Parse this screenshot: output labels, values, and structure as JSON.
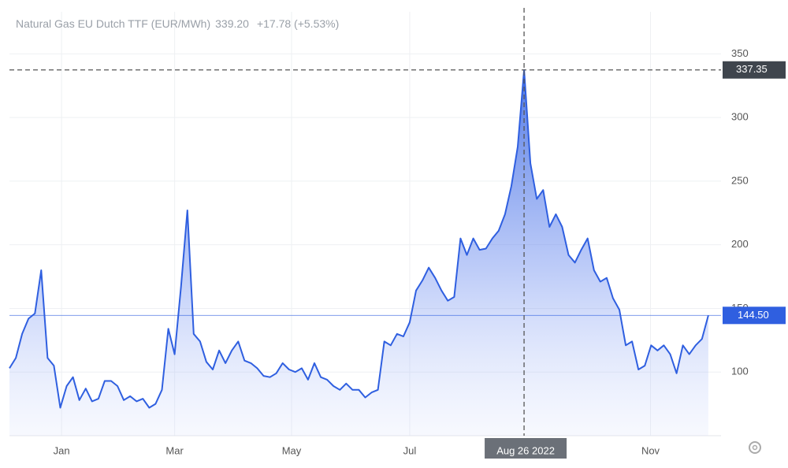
{
  "chart_data": {
    "type": "area",
    "title": "Natural Gas EU Dutch TTF (EUR/MWh)",
    "last_price": "339.20",
    "change": "+17.78 (+5.53%)",
    "series": [
      {
        "name": "Natural Gas EU Dutch TTF",
        "color": "#2f5fe0",
        "values": [
          103,
          111,
          130,
          142,
          146,
          180,
          111,
          105,
          72,
          89,
          96,
          78,
          87,
          77,
          79,
          93,
          93,
          89,
          78,
          81,
          77,
          79,
          72,
          75,
          86,
          134,
          114,
          167,
          227,
          130,
          124,
          108,
          102,
          117,
          107,
          117,
          124,
          109,
          107,
          103,
          97,
          96,
          99,
          107,
          102,
          100,
          103,
          94,
          107,
          96,
          94,
          89,
          86,
          91,
          86,
          86,
          80,
          84,
          86,
          124,
          121,
          130,
          128,
          139,
          164,
          172,
          182,
          174,
          164,
          156,
          159,
          205,
          192,
          205,
          196,
          197,
          205,
          211,
          224,
          246,
          277,
          337.35,
          264,
          236,
          243,
          214,
          224,
          214,
          192,
          186,
          196,
          205,
          180,
          171,
          174,
          158,
          149,
          121,
          124,
          102,
          105,
          121,
          117,
          121,
          114,
          99,
          121,
          114,
          121,
          126,
          144.5
        ]
      }
    ],
    "xlim": [
      0,
      112
    ],
    "xticks": [
      {
        "value": 8.2,
        "label": "Jan"
      },
      {
        "value": 26,
        "label": "Mar"
      },
      {
        "value": 44.4,
        "label": "May"
      },
      {
        "value": 63,
        "label": "Jul"
      },
      {
        "value": 100.9,
        "label": "Nov"
      }
    ],
    "ylim": [
      50,
      383
    ],
    "yticks": [
      100,
      150,
      200,
      250,
      300,
      350
    ],
    "crosshair_x": {
      "value": 81,
      "label": "Aug 26 2022"
    },
    "crosshair_y": {
      "value": 337.35,
      "label": "337.35"
    },
    "price_line": {
      "value": 144.5,
      "label": "144.50"
    },
    "grid": true
  }
}
